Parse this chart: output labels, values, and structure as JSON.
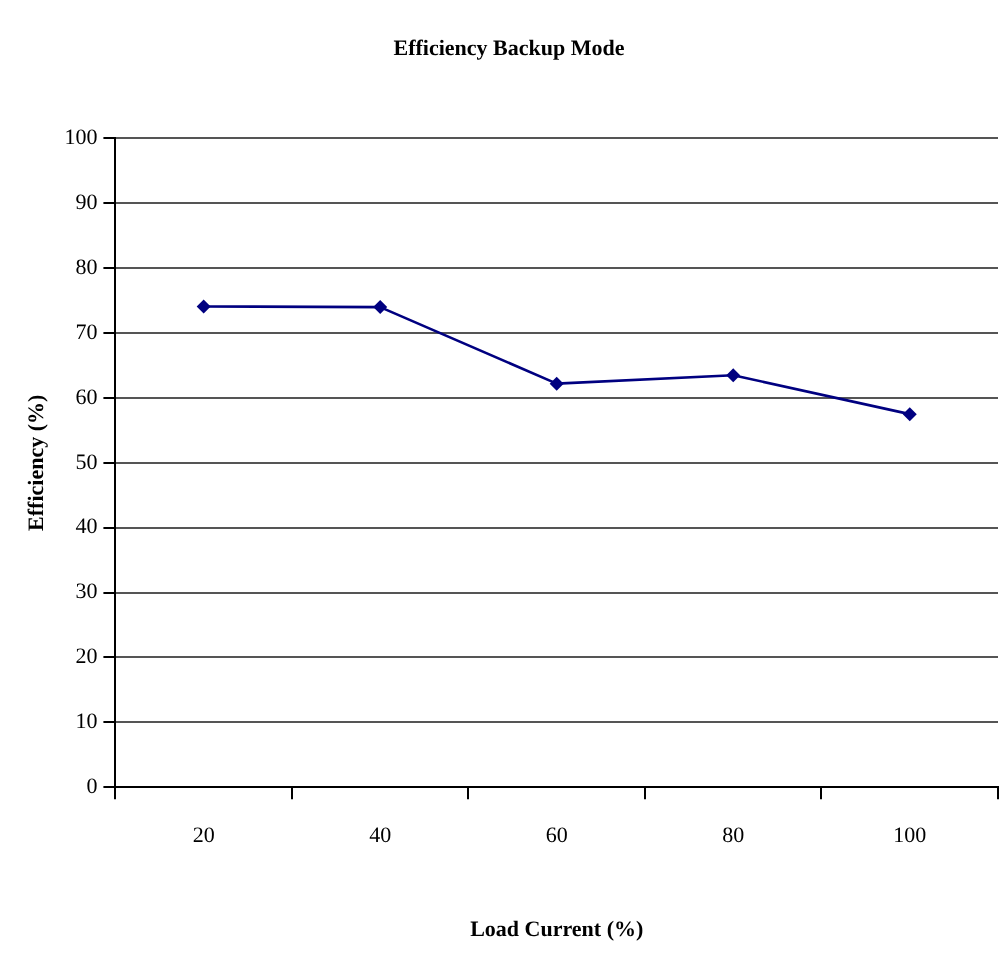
{
  "chart_data": {
    "type": "line",
    "title": "Efficiency Backup Mode",
    "xlabel": "Load Current (%)",
    "ylabel": "Efficiency (%)",
    "categories": [
      "20",
      "40",
      "60",
      "80",
      "100"
    ],
    "series": [
      {
        "color": "#000080",
        "values": [
          74.1,
          74.0,
          62.2,
          63.5,
          57.5
        ]
      }
    ],
    "ylim": [
      0,
      100
    ],
    "yticks": [
      0,
      10,
      20,
      30,
      40,
      50,
      60,
      70,
      80,
      90,
      100
    ],
    "grid": "y",
    "legend": false,
    "marker": "diamond",
    "line_style": "solid"
  }
}
